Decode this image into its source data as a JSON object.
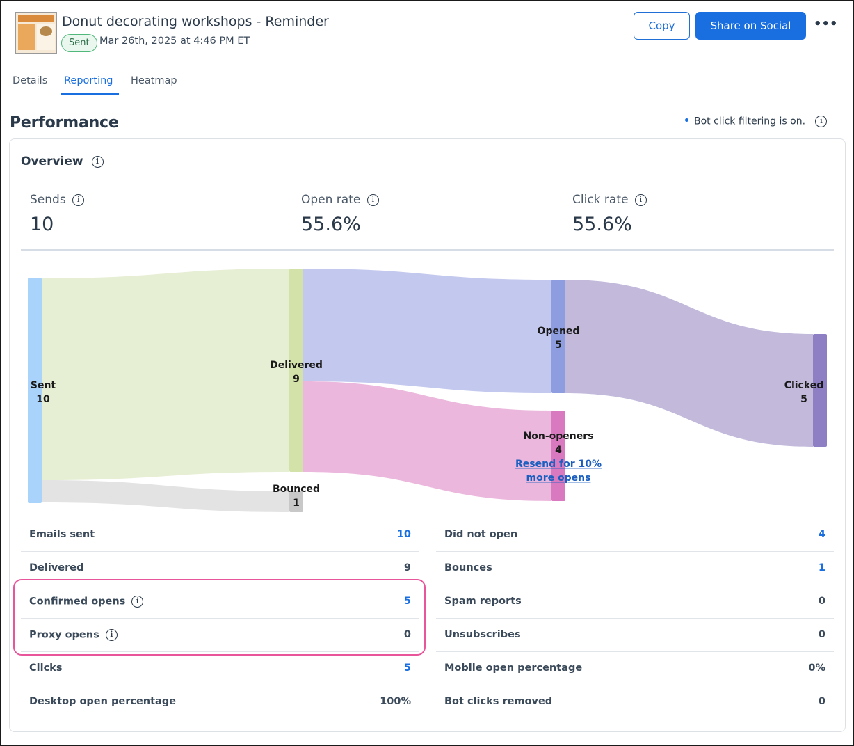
{
  "header": {
    "title": "Donut decorating workshops - Reminder",
    "status_badge": "Sent",
    "sent_date": "Mar 26th, 2025 at 4:46 PM ET",
    "copy_label": "Copy",
    "share_label": "Share on Social",
    "more_icon": "more-horizontal-icon"
  },
  "tabs": [
    {
      "label": "Details",
      "active": false
    },
    {
      "label": "Reporting",
      "active": true
    },
    {
      "label": "Heatmap",
      "active": false
    }
  ],
  "performance": {
    "title": "Performance",
    "bot_filter_text": "Bot click filtering is on."
  },
  "overview": {
    "title": "Overview",
    "stats": [
      {
        "label": "Sends",
        "value": "10"
      },
      {
        "label": "Open rate",
        "value": "55.6%"
      },
      {
        "label": "Click rate",
        "value": "55.6%"
      }
    ]
  },
  "sankey": {
    "nodes": [
      {
        "name": "Sent",
        "value": "10",
        "color": "#a9d3fb"
      },
      {
        "name": "Delivered",
        "value": "9",
        "color": "#d3e2a8"
      },
      {
        "name": "Bounced",
        "value": "1",
        "color": "#c8c8c8"
      },
      {
        "name": "Opened",
        "value": "5",
        "color": "#8e9ce0"
      },
      {
        "name": "Non-openers",
        "value": "4",
        "color": "#d979c0"
      },
      {
        "name": "Clicked",
        "value": "5",
        "color": "#8e7fc4"
      }
    ],
    "resend_link_line1": "Resend for 10%",
    "resend_link_line2": "more opens"
  },
  "metrics_left": [
    {
      "label": "Emails sent",
      "value": "10",
      "link": true,
      "info": false
    },
    {
      "label": "Delivered",
      "value": "9",
      "link": false,
      "info": false
    },
    {
      "label": "Confirmed opens",
      "value": "5",
      "link": true,
      "info": true
    },
    {
      "label": "Proxy opens",
      "value": "0",
      "link": false,
      "info": true
    },
    {
      "label": "Clicks",
      "value": "5",
      "link": true,
      "info": false
    },
    {
      "label": "Desktop open percentage",
      "value": "100%",
      "link": false,
      "info": false
    }
  ],
  "metrics_right": [
    {
      "label": "Did not open",
      "value": "4",
      "link": true
    },
    {
      "label": "Bounces",
      "value": "1",
      "link": true
    },
    {
      "label": "Spam reports",
      "value": "0",
      "link": false
    },
    {
      "label": "Unsubscribes",
      "value": "0",
      "link": false
    },
    {
      "label": "Mobile open percentage",
      "value": "0%",
      "link": false
    },
    {
      "label": "Bot clicks removed",
      "value": "0",
      "link": false
    }
  ],
  "colors": {
    "accent": "#1a6fe0",
    "highlight": "#e8559a",
    "badge_border": "#4fb87a"
  }
}
